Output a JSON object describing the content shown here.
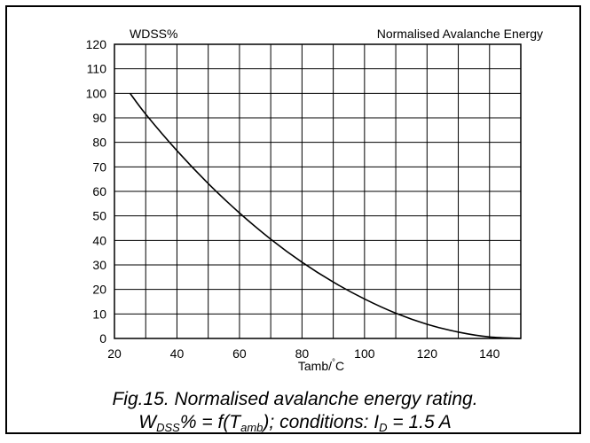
{
  "chart_data": {
    "type": "line",
    "title": "Normalised Avalanche Energy",
    "ylabel": "WDSS%",
    "xlabel": "Tamb/",
    "xlabel_unit": "C",
    "xlabel_degree": "°",
    "xlim": [
      20,
      150
    ],
    "ylim": [
      0,
      120
    ],
    "xticks": [
      20,
      40,
      60,
      80,
      100,
      120,
      140
    ],
    "yticks": [
      0,
      10,
      20,
      30,
      40,
      50,
      60,
      70,
      80,
      90,
      100,
      110,
      120
    ],
    "x_grid_step": 10,
    "y_grid_step": 10,
    "grid": true,
    "series": [
      {
        "x": [
          25,
          30,
          40,
          50,
          60,
          70,
          80,
          90,
          100,
          110,
          120,
          130,
          140,
          150
        ],
        "y": [
          100,
          91.5,
          76.6,
          63.2,
          51.2,
          40.5,
          31.1,
          23.0,
          16.1,
          10.3,
          5.8,
          2.6,
          0.6,
          0
        ]
      }
    ],
    "color": "#000000"
  },
  "caption": {
    "line1": "Fig.15.   Normalised avalanche energy rating.",
    "w": "W",
    "w_sub": "DSS",
    "mid": "% = f(T",
    "t_sub": "amb",
    "cond": "); conditions: I",
    "i_sub": "D",
    "end": " = 1.5 A"
  }
}
